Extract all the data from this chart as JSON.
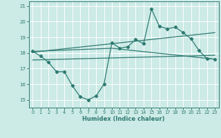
{
  "xlabel": "Humidex (Indice chaleur)",
  "bg_color": "#cceae6",
  "grid_color": "#ffffff",
  "line_color": "#2d7a70",
  "xlim": [
    -0.5,
    23.5
  ],
  "ylim": [
    14.5,
    21.3
  ],
  "yticks": [
    15,
    16,
    17,
    18,
    19,
    20,
    21
  ],
  "xticks": [
    0,
    1,
    2,
    3,
    4,
    5,
    6,
    7,
    8,
    9,
    10,
    11,
    12,
    13,
    14,
    15,
    16,
    17,
    18,
    19,
    20,
    21,
    22,
    23
  ],
  "series1_x": [
    0,
    1,
    2,
    3,
    4,
    5,
    6,
    7,
    8,
    9,
    10,
    11,
    12,
    13,
    14,
    15,
    16,
    17,
    18,
    19,
    20,
    21,
    22,
    23
  ],
  "series1_y": [
    18.1,
    17.8,
    17.4,
    16.8,
    16.8,
    15.9,
    15.2,
    15.0,
    15.25,
    16.0,
    18.65,
    18.3,
    18.4,
    18.85,
    18.6,
    20.8,
    19.7,
    19.55,
    19.65,
    19.3,
    18.9,
    18.15,
    17.65,
    17.6
  ],
  "series2_x": [
    0,
    23
  ],
  "series2_y": [
    18.05,
    19.3
  ],
  "series3_x": [
    0,
    23
  ],
  "series3_y": [
    17.55,
    17.85
  ],
  "series4_x": [
    0,
    10,
    23
  ],
  "series4_y": [
    18.1,
    18.3,
    17.6
  ]
}
